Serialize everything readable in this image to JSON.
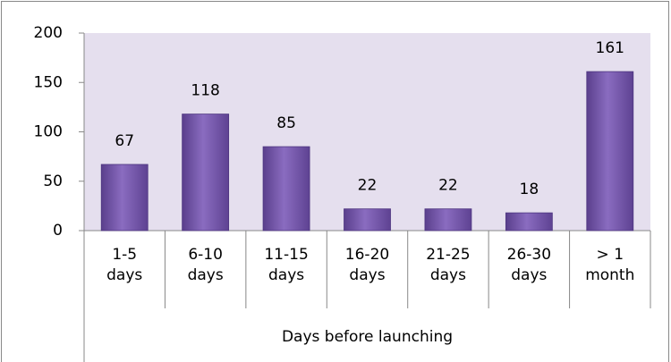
{
  "chart_data": {
    "type": "bar",
    "categories": [
      "1-5 days",
      "6-10 days",
      "11-15 days",
      "16-20 days",
      "21-25 days",
      "26-30 days",
      "> 1 month"
    ],
    "values": [
      67,
      118,
      85,
      22,
      22,
      18,
      161
    ],
    "color": "#7458a8",
    "x_label": "Days before launching",
    "ylim": [
      0,
      200
    ],
    "yticks": [
      0,
      50,
      100,
      150,
      200
    ]
  }
}
